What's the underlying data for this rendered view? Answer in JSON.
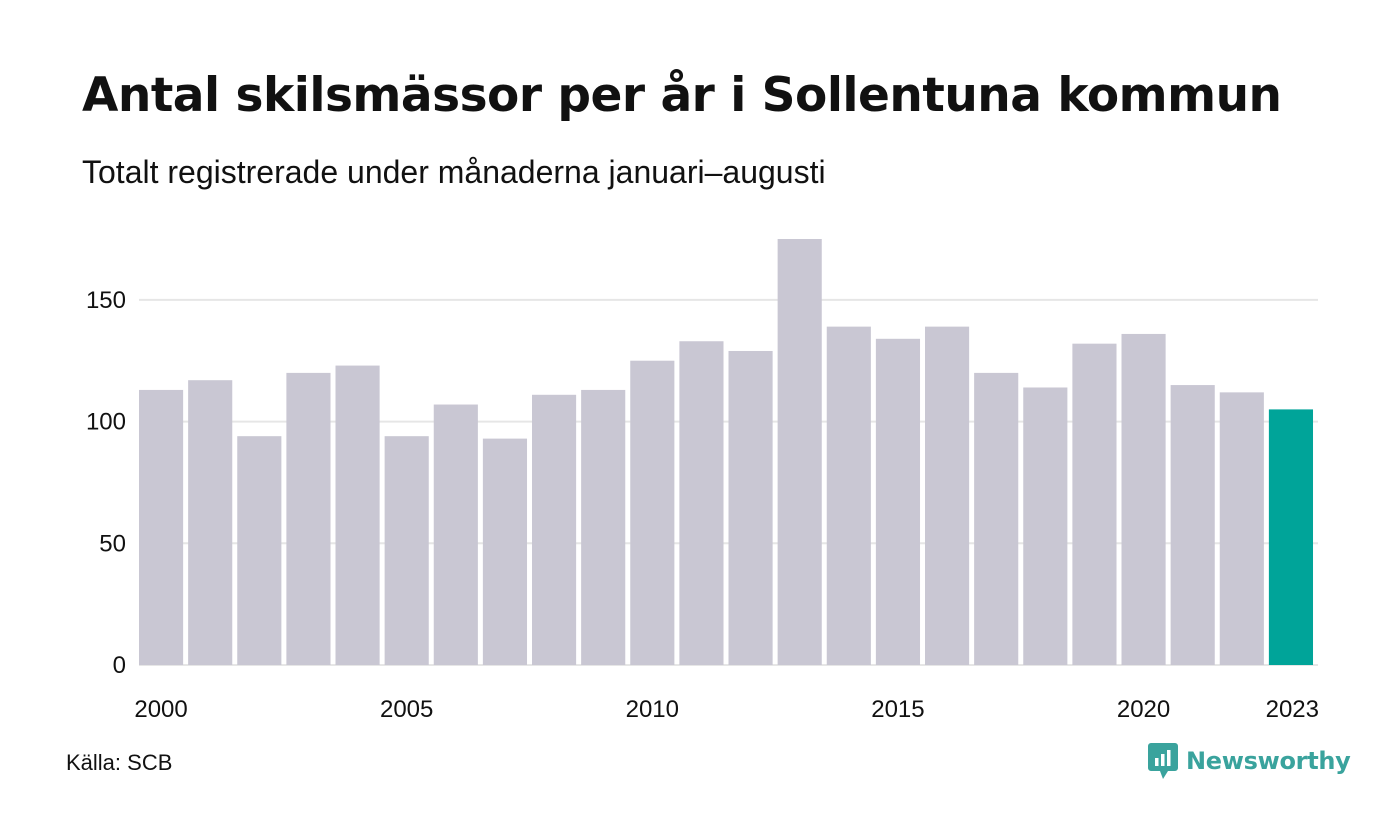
{
  "header": {
    "title": "Antal skilsmässor per år i Sollentuna kommun",
    "subtitle": "Totalt registrerade under månaderna januari–augusti"
  },
  "footer": {
    "source": "Källa: SCB",
    "brand_name": "Newsworthy",
    "brand_icon": "newsworthy-logo-icon"
  },
  "colors": {
    "bar": "#c9c7d3",
    "highlight": "#00a499",
    "grid": "#e6e6e6",
    "brand": "#3aa39d"
  },
  "chart_data": {
    "type": "bar",
    "title": "Antal skilsmässor per år i Sollentuna kommun",
    "subtitle": "Totalt registrerade under månaderna januari–augusti",
    "xlabel": "",
    "ylabel": "",
    "categories": [
      2000,
      2001,
      2002,
      2003,
      2004,
      2005,
      2006,
      2007,
      2008,
      2009,
      2010,
      2011,
      2012,
      2013,
      2014,
      2015,
      2016,
      2017,
      2018,
      2019,
      2020,
      2021,
      2022,
      2023
    ],
    "values": [
      113,
      117,
      94,
      120,
      123,
      94,
      107,
      93,
      111,
      113,
      125,
      133,
      129,
      175,
      139,
      134,
      139,
      120,
      114,
      132,
      136,
      115,
      112,
      105
    ],
    "highlight_category": 2023,
    "ylim": [
      0,
      175
    ],
    "yticks": [
      0,
      50,
      100,
      150
    ],
    "xtick_labels": [
      2000,
      2005,
      2010,
      2015,
      2020,
      2023
    ],
    "grid": true,
    "legend": "none"
  }
}
